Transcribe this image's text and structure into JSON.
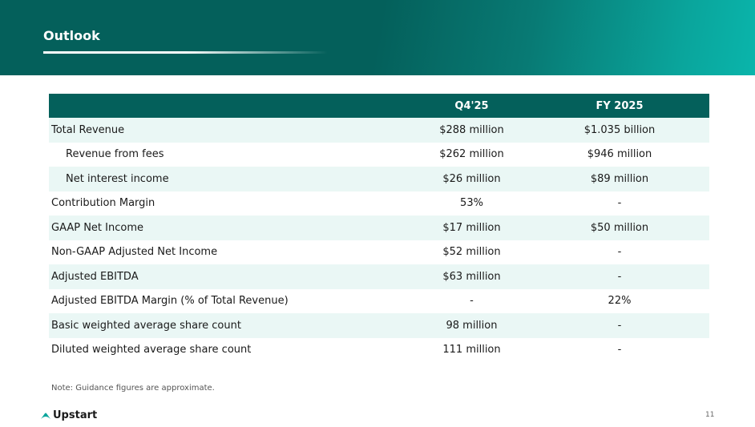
{
  "title": "Outlook",
  "headers": [
    "",
    "Q4'25",
    "FY 2025"
  ],
  "rows": [
    {
      "label": "Total Revenue",
      "q4": "$288 million",
      "fy": "$1.035 billion"
    },
    {
      "label": "Revenue from fees",
      "q4": "$262 million",
      "fy": "$946 million"
    },
    {
      "label": "Net interest income",
      "q4": "$26 million",
      "fy": "$89 million"
    },
    {
      "label": "Contribution Margin",
      "q4": "53%",
      "fy": "-"
    },
    {
      "label": "GAAP Net Income",
      "q4": "$17 million",
      "fy": "$50 million"
    },
    {
      "label": "Non-GAAP Adjusted Net Income",
      "q4": "$52 million",
      "fy": "-"
    },
    {
      "label": "Adjusted EBITDA",
      "q4": "$63 million",
      "fy": "-"
    },
    {
      "label": "Adjusted EBITDA Margin (% of Total Revenue)",
      "q4": "-",
      "fy": "22%"
    },
    {
      "label": "Basic weighted average share count",
      "q4": "98 million",
      "fy": "-"
    },
    {
      "label": "Diluted weighted average share count",
      "q4": "111 million",
      "fy": "-"
    }
  ],
  "note": "Note: Guidance figures are approximate.",
  "brand": "Upstart",
  "page_number": "11"
}
